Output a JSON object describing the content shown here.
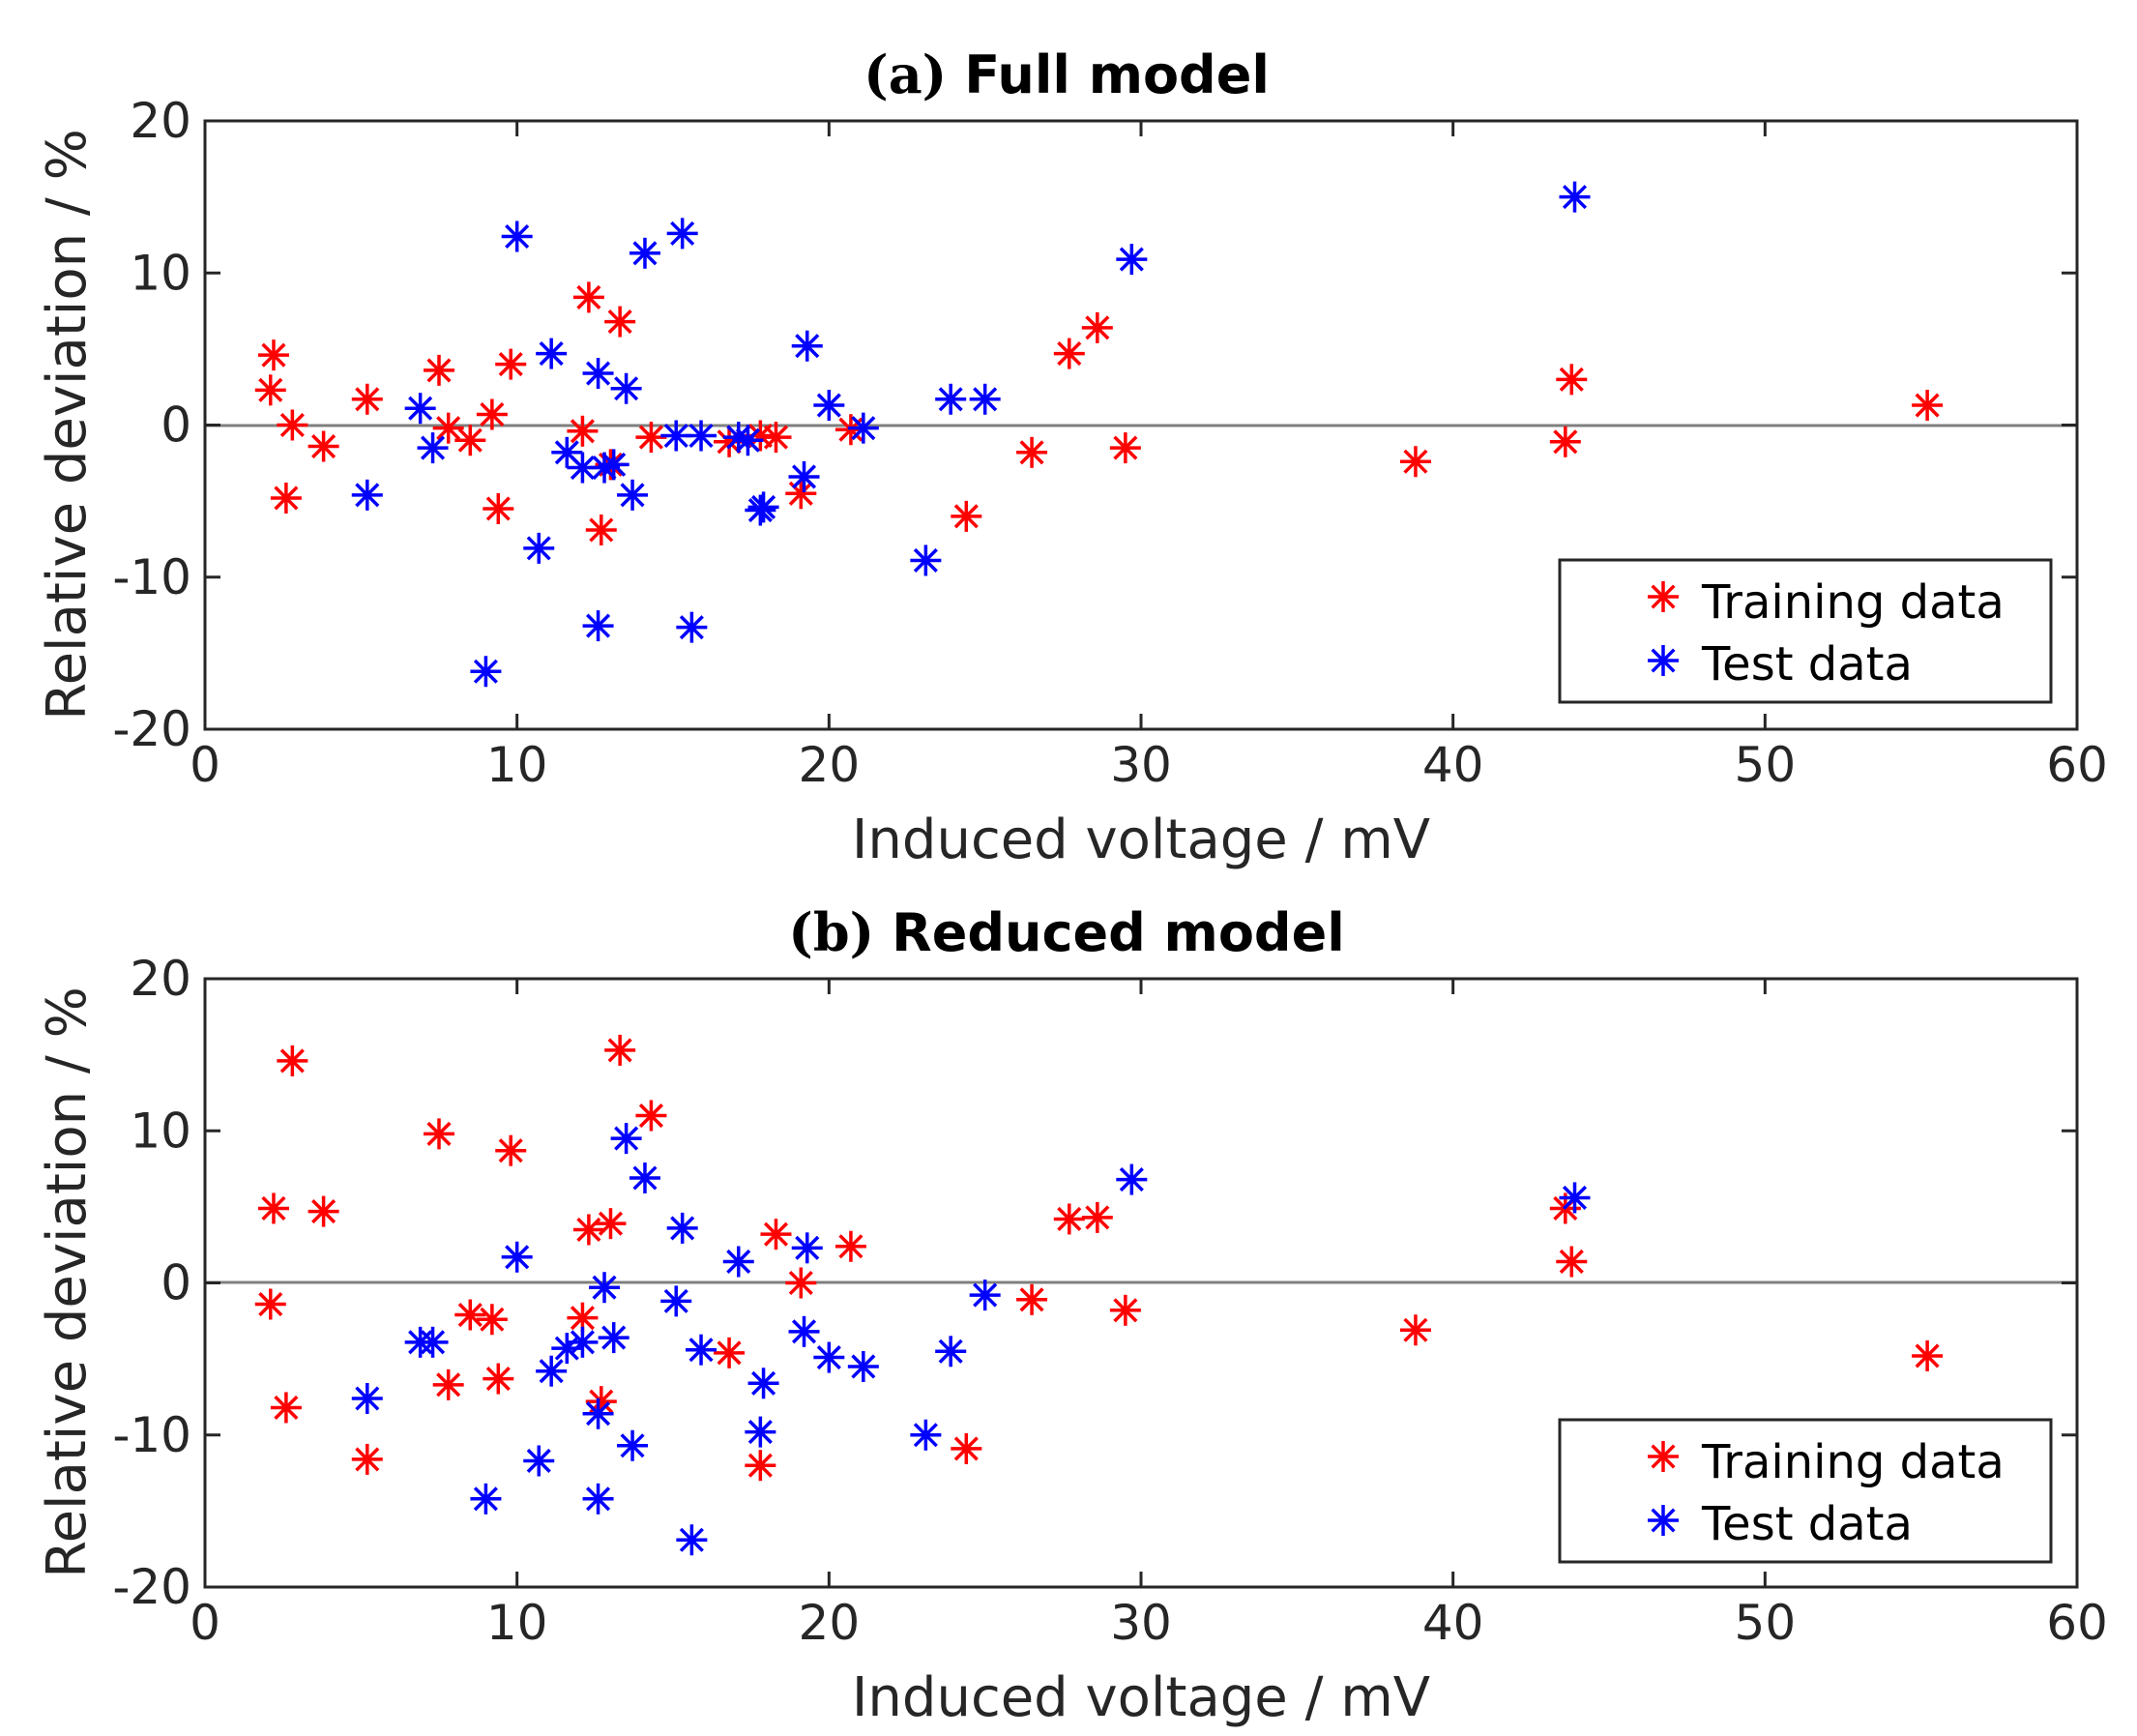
{
  "chart_data": [
    {
      "type": "scatter",
      "title_prefix": "(a)",
      "title": "Full model",
      "xlabel": "Induced voltage / mV",
      "ylabel": "Relative deviation / %",
      "xlim": [
        0,
        60
      ],
      "ylim": [
        -20,
        20
      ],
      "xticks": [
        "0",
        "10",
        "20",
        "30",
        "40",
        "50",
        "60"
      ],
      "yticks": [
        "20",
        "10",
        "0",
        "-10",
        "-20"
      ],
      "legend_position": "bottom-right",
      "series": [
        {
          "name": "Training data",
          "color": "#ff0000",
          "points": [
            [
              2.2,
              4.6
            ],
            [
              2.1,
              2.3
            ],
            [
              2.8,
              0
            ],
            [
              2.6,
              -4.8
            ],
            [
              3.8,
              -1.4
            ],
            [
              5.2,
              1.7
            ],
            [
              7.5,
              3.6
            ],
            [
              7.8,
              -0.2
            ],
            [
              8.5,
              -1
            ],
            [
              9.2,
              0.7
            ],
            [
              9.4,
              -5.5
            ],
            [
              9.8,
              4
            ],
            [
              12.1,
              -0.4
            ],
            [
              12.3,
              8.4
            ],
            [
              12.7,
              -6.9
            ],
            [
              13,
              -2.6
            ],
            [
              13.3,
              6.8
            ],
            [
              14.3,
              -0.8
            ],
            [
              16.8,
              -1.1
            ],
            [
              17.8,
              -0.7
            ],
            [
              18.3,
              -0.8
            ],
            [
              19.1,
              -4.5
            ],
            [
              20.7,
              -0.3
            ],
            [
              24.4,
              -6
            ],
            [
              26.5,
              -1.8
            ],
            [
              27.7,
              4.7
            ],
            [
              28.6,
              6.4
            ],
            [
              29.5,
              -1.5
            ],
            [
              38.8,
              -2.4
            ],
            [
              43.6,
              -1.1
            ],
            [
              43.8,
              3
            ],
            [
              55.2,
              1.3
            ]
          ]
        },
        {
          "name": "Test data",
          "color": "#0000ff",
          "points": [
            [
              5.2,
              -4.6
            ],
            [
              6.9,
              1.1
            ],
            [
              7.3,
              -1.5
            ],
            [
              9,
              -16.2
            ],
            [
              10,
              12.4
            ],
            [
              10.7,
              -8.1
            ],
            [
              11.1,
              4.7
            ],
            [
              11.6,
              -1.8
            ],
            [
              12.1,
              -2.8
            ],
            [
              12.6,
              3.4
            ],
            [
              12.6,
              -13.2
            ],
            [
              12.8,
              -2.8
            ],
            [
              13.1,
              -2.6
            ],
            [
              13.5,
              2.4
            ],
            [
              13.7,
              -4.6
            ],
            [
              14.1,
              11.3
            ],
            [
              15.1,
              -0.7
            ],
            [
              15.3,
              12.6
            ],
            [
              15.6,
              -13.3
            ],
            [
              15.9,
              -0.7
            ],
            [
              17.1,
              -0.8
            ],
            [
              17.4,
              -1
            ],
            [
              17.8,
              -5.6
            ],
            [
              17.9,
              -5.4
            ],
            [
              19.2,
              -3.4
            ],
            [
              19.3,
              5.2
            ],
            [
              20,
              1.3
            ],
            [
              21.1,
              -0.2
            ],
            [
              23.1,
              -8.9
            ],
            [
              23.9,
              1.7
            ],
            [
              25,
              1.7
            ],
            [
              29.7,
              10.9
            ],
            [
              43.9,
              15
            ]
          ]
        }
      ]
    },
    {
      "type": "scatter",
      "title_prefix": "(b)",
      "title": "Reduced model",
      "xlabel": "Induced voltage / mV",
      "ylabel": "Relative deviation / %",
      "xlim": [
        0,
        60
      ],
      "ylim": [
        -20,
        20
      ],
      "xticks": [
        "0",
        "10",
        "20",
        "30",
        "40",
        "50",
        "60"
      ],
      "yticks": [
        "20",
        "10",
        "0",
        "-10",
        "-20"
      ],
      "legend_position": "bottom-right",
      "series": [
        {
          "name": "Training data",
          "color": "#ff0000",
          "points": [
            [
              2.2,
              4.9
            ],
            [
              2.1,
              -1.4
            ],
            [
              2.8,
              14.6
            ],
            [
              2.6,
              -8.2
            ],
            [
              3.8,
              4.7
            ],
            [
              5.2,
              -11.6
            ],
            [
              7.5,
              9.8
            ],
            [
              7.8,
              -6.7
            ],
            [
              8.5,
              -2.1
            ],
            [
              9.2,
              -2.4
            ],
            [
              9.4,
              -6.3
            ],
            [
              9.8,
              8.7
            ],
            [
              12.1,
              -2.3
            ],
            [
              12.3,
              3.5
            ],
            [
              12.7,
              -7.8
            ],
            [
              13,
              3.9
            ],
            [
              13.3,
              15.3
            ],
            [
              14.3,
              11
            ],
            [
              16.8,
              -4.6
            ],
            [
              17.8,
              -12
            ],
            [
              18.3,
              3.2
            ],
            [
              19.1,
              0
            ],
            [
              20.7,
              2.4
            ],
            [
              24.4,
              -10.9
            ],
            [
              26.5,
              -1.1
            ],
            [
              27.7,
              4.2
            ],
            [
              28.6,
              4.3
            ],
            [
              29.5,
              -1.8
            ],
            [
              38.8,
              -3.1
            ],
            [
              43.6,
              4.9
            ],
            [
              43.8,
              1.4
            ],
            [
              55.2,
              -4.8
            ]
          ]
        },
        {
          "name": "Test data",
          "color": "#0000ff",
          "points": [
            [
              5.2,
              -7.6
            ],
            [
              6.9,
              -3.9
            ],
            [
              7.3,
              -3.9
            ],
            [
              9,
              -14.2
            ],
            [
              10,
              1.7
            ],
            [
              10.7,
              -11.7
            ],
            [
              11.1,
              -5.8
            ],
            [
              11.6,
              -4.3
            ],
            [
              12.1,
              -3.9
            ],
            [
              12.6,
              -8.6
            ],
            [
              12.6,
              -14.2
            ],
            [
              12.8,
              -0.3
            ],
            [
              13.1,
              -3.6
            ],
            [
              13.5,
              9.5
            ],
            [
              13.7,
              -10.7
            ],
            [
              14.1,
              6.9
            ],
            [
              15.1,
              -1.2
            ],
            [
              15.3,
              3.6
            ],
            [
              15.6,
              -16.9
            ],
            [
              15.9,
              -4.4
            ],
            [
              17.1,
              1.4
            ],
            [
              17.8,
              -9.8
            ],
            [
              17.9,
              -6.6
            ],
            [
              19.2,
              -3.2
            ],
            [
              19.3,
              2.3
            ],
            [
              20,
              -4.9
            ],
            [
              21.1,
              -5.5
            ],
            [
              23.1,
              -10
            ],
            [
              23.9,
              -4.5
            ],
            [
              25,
              -0.8
            ],
            [
              29.7,
              6.8
            ],
            [
              43.9,
              5.6
            ]
          ]
        }
      ]
    }
  ]
}
